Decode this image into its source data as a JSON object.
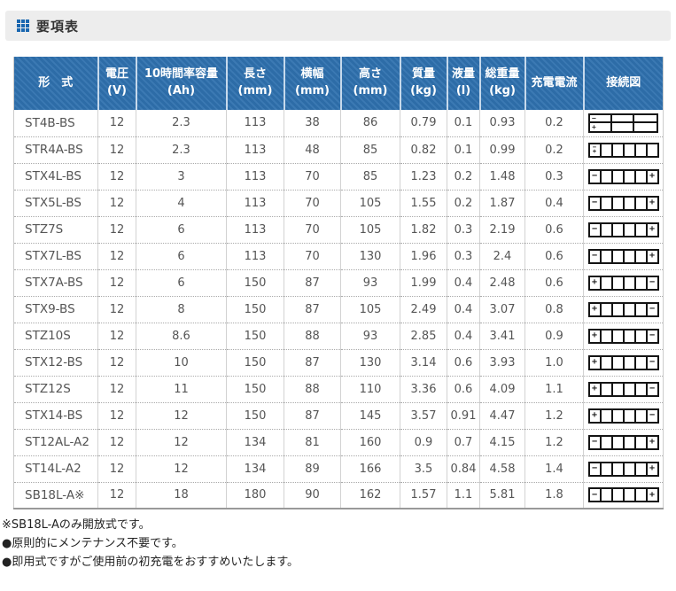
{
  "section": {
    "title": "要項表",
    "icon": "grid-icon"
  },
  "table": {
    "columns": [
      {
        "id": "model",
        "label": "形　式",
        "unit": ""
      },
      {
        "id": "voltage",
        "label": "電圧",
        "unit": "(V)"
      },
      {
        "id": "capacity",
        "label": "10時間率容量",
        "unit": "(Ah)"
      },
      {
        "id": "length",
        "label": "長さ",
        "unit": "(mm)"
      },
      {
        "id": "width",
        "label": "横幅",
        "unit": "(mm)"
      },
      {
        "id": "height",
        "label": "高さ",
        "unit": "(mm)"
      },
      {
        "id": "mass",
        "label": "質量",
        "unit": "(kg)"
      },
      {
        "id": "liquid",
        "label": "液量",
        "unit": "(l)"
      },
      {
        "id": "total_weight",
        "label": "総重量",
        "unit": "(kg)"
      },
      {
        "id": "charge_current",
        "label": "充電電流",
        "unit": ""
      },
      {
        "id": "diagram",
        "label": "接続図",
        "unit": ""
      }
    ],
    "rows": [
      {
        "model": "ST4B-BS",
        "voltage": "12",
        "capacity": "2.3",
        "length": "113",
        "width": "38",
        "height": "86",
        "mass": "0.79",
        "liquid": "0.1",
        "total_weight": "0.93",
        "charge_current": "0.2",
        "diagram": "grid2x3-minus-top-plus-bottom-left"
      },
      {
        "model": "STR4A-BS",
        "voltage": "12",
        "capacity": "2.3",
        "length": "113",
        "width": "48",
        "height": "85",
        "mass": "0.82",
        "liquid": "0.1",
        "total_weight": "0.99",
        "charge_current": "0.2",
        "diagram": "6cell-stacked-terminals-left"
      },
      {
        "model": "STX4L-BS",
        "voltage": "12",
        "capacity": "3",
        "length": "113",
        "width": "70",
        "height": "85",
        "mass": "1.23",
        "liquid": "0.2",
        "total_weight": "1.48",
        "charge_current": "0.3",
        "diagram": "6cell-minus-left-plus-right"
      },
      {
        "model": "STX5L-BS",
        "voltage": "12",
        "capacity": "4",
        "length": "113",
        "width": "70",
        "height": "105",
        "mass": "1.55",
        "liquid": "0.2",
        "total_weight": "1.87",
        "charge_current": "0.4",
        "diagram": "6cell-minus-left-plus-right"
      },
      {
        "model": "STZ7S",
        "voltage": "12",
        "capacity": "6",
        "length": "113",
        "width": "70",
        "height": "105",
        "mass": "1.82",
        "liquid": "0.3",
        "total_weight": "2.19",
        "charge_current": "0.6",
        "diagram": "6cell-minus-left-plus-right"
      },
      {
        "model": "STX7L-BS",
        "voltage": "12",
        "capacity": "6",
        "length": "113",
        "width": "70",
        "height": "130",
        "mass": "1.96",
        "liquid": "0.3",
        "total_weight": "2.4",
        "charge_current": "0.6",
        "diagram": "6cell-minus-left-plus-right"
      },
      {
        "model": "STX7A-BS",
        "voltage": "12",
        "capacity": "6",
        "length": "150",
        "width": "87",
        "height": "93",
        "mass": "1.99",
        "liquid": "0.4",
        "total_weight": "2.48",
        "charge_current": "0.6",
        "diagram": "6cell-plus-left-minus-right"
      },
      {
        "model": "STX9-BS",
        "voltage": "12",
        "capacity": "8",
        "length": "150",
        "width": "87",
        "height": "105",
        "mass": "2.49",
        "liquid": "0.4",
        "total_weight": "3.07",
        "charge_current": "0.8",
        "diagram": "6cell-plus-left-minus-right"
      },
      {
        "model": "STZ10S",
        "voltage": "12",
        "capacity": "8.6",
        "length": "150",
        "width": "88",
        "height": "93",
        "mass": "2.85",
        "liquid": "0.4",
        "total_weight": "3.41",
        "charge_current": "0.9",
        "diagram": "6cell-plus-left-minus-right"
      },
      {
        "model": "STX12-BS",
        "voltage": "12",
        "capacity": "10",
        "length": "150",
        "width": "87",
        "height": "130",
        "mass": "3.14",
        "liquid": "0.6",
        "total_weight": "3.93",
        "charge_current": "1.0",
        "diagram": "6cell-plus-left-minus-right"
      },
      {
        "model": "STZ12S",
        "voltage": "12",
        "capacity": "11",
        "length": "150",
        "width": "88",
        "height": "110",
        "mass": "3.36",
        "liquid": "0.6",
        "total_weight": "4.09",
        "charge_current": "1.1",
        "diagram": "6cell-plus-left-minus-right"
      },
      {
        "model": "STX14-BS",
        "voltage": "12",
        "capacity": "12",
        "length": "150",
        "width": "87",
        "height": "145",
        "mass": "3.57",
        "liquid": "0.91",
        "total_weight": "4.47",
        "charge_current": "1.2",
        "diagram": "6cell-plus-left-minus-right"
      },
      {
        "model": "ST12AL-A2",
        "voltage": "12",
        "capacity": "12",
        "length": "134",
        "width": "81",
        "height": "160",
        "mass": "0.9",
        "liquid": "0.7",
        "total_weight": "4.15",
        "charge_current": "1.2",
        "diagram": "6cell-minus-left-plus-right"
      },
      {
        "model": "ST14L-A2",
        "voltage": "12",
        "capacity": "12",
        "length": "134",
        "width": "89",
        "height": "166",
        "mass": "3.5",
        "liquid": "0.84",
        "total_weight": "4.58",
        "charge_current": "1.4",
        "diagram": "6cell-minus-left-plus-right"
      },
      {
        "model": "SB18L-A※",
        "voltage": "12",
        "capacity": "18",
        "length": "180",
        "width": "90",
        "height": "162",
        "mass": "1.57",
        "liquid": "1.1",
        "total_weight": "5.81",
        "charge_current": "1.8",
        "diagram": "6cell-minus-left-plus-right"
      }
    ]
  },
  "footnotes": [
    "※SB18L-Aのみ開放式です。",
    "●原則的にメンテナンス不要です。",
    "●即用式ですがご使用前の初充電をおすすめいたします。"
  ],
  "colors": {
    "header_bg": "#2d6ca7",
    "header_stripe": "#3b79b3",
    "header_text": "#ffffff",
    "row_text": "#555555",
    "title_text": "#333333",
    "icon_blue": "#1a67b0"
  }
}
